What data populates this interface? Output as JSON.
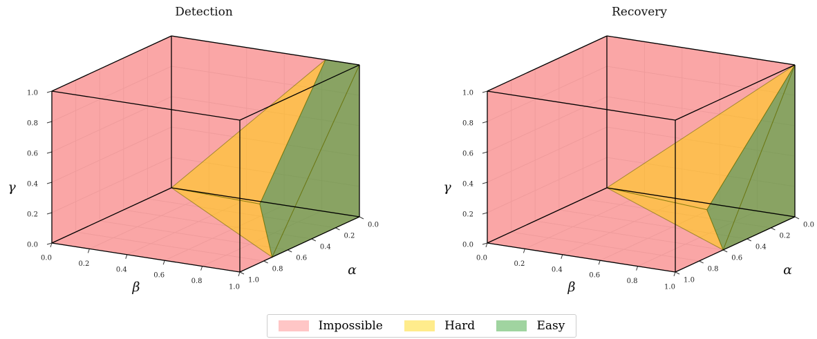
{
  "chart_data": [
    {
      "type": "polyhedron3d",
      "title": "Detection",
      "xlabel": "α",
      "ylabel": "β",
      "zlabel": "γ",
      "xlim": [
        0,
        1
      ],
      "ylim": [
        0,
        1
      ],
      "zlim": [
        0,
        1
      ],
      "xticks": [
        {
          "value": 0,
          "label": "0.0"
        },
        0.2,
        0.4,
        0.6,
        0.8,
        {
          "value": 1,
          "label": "1.0"
        }
      ],
      "yticks": [
        {
          "value": 0,
          "label": "0.0"
        },
        0.2,
        0.4,
        0.6,
        0.8,
        {
          "value": 1,
          "label": "1.0"
        }
      ],
      "zticks": [
        {
          "value": 0,
          "label": "0.0"
        },
        0.2,
        0.4,
        0.6,
        0.8,
        {
          "value": 1,
          "label": "1.0"
        }
      ],
      "regions": [
        {
          "faces": [
            [
              [
                0,
                0,
                0
              ],
              [
                1,
                0,
                0
              ],
              [
                1,
                1,
                0
              ],
              [
                0,
                1,
                0
              ]
            ],
            [
              [
                0,
                0,
                0
              ],
              [
                1,
                0,
                0
              ],
              [
                1,
                0,
                1
              ],
              [
                0,
                0,
                1
              ]
            ],
            [
              [
                0,
                0,
                0
              ],
              [
                0,
                1,
                0
              ],
              [
                0,
                1,
                1
              ],
              [
                0,
                0,
                1
              ]
            ],
            [
              [
                1,
                0,
                0
              ],
              [
                1,
                1,
                0
              ],
              [
                1,
                1,
                1
              ],
              [
                1,
                0,
                1
              ]
            ],
            [
              [
                0,
                1,
                0
              ],
              [
                1,
                1,
                0
              ],
              [
                1,
                1,
                1
              ],
              [
                0,
                1,
                1
              ]
            ],
            [
              [
                0,
                0,
                1
              ],
              [
                1,
                0,
                1
              ],
              [
                1,
                1,
                1
              ],
              [
                0,
                1,
                1
              ]
            ]
          ]
        },
        {
          "faces": [
            [
              [
                0,
                0,
                0
              ],
              [
                0,
                0.82,
                1
              ],
              [
                0.55,
                0.82,
                0.25
              ]
            ],
            [
              [
                0,
                0,
                0
              ],
              [
                0.55,
                0.82,
                0.25
              ],
              [
                0.73,
                1,
                0
              ]
            ]
          ]
        },
        {
          "faces": [
            [
              [
                0,
                0.82,
                1
              ],
              [
                0,
                1,
                1
              ],
              [
                0.73,
                1,
                0
              ],
              [
                0.55,
                0.82,
                0.25
              ]
            ],
            [
              [
                0,
                1,
                1
              ],
              [
                0,
                1,
                0
              ],
              [
                0.73,
                1,
                0
              ]
            ]
          ]
        }
      ]
    },
    {
      "type": "polyhedron3d",
      "title": "Recovery",
      "xlabel": "α",
      "ylabel": "β",
      "zlabel": "γ",
      "xlim": [
        0,
        1
      ],
      "ylim": [
        0,
        1
      ],
      "zlim": [
        0,
        1
      ],
      "xticks": [
        {
          "value": 0,
          "label": "0.0"
        },
        0.2,
        0.4,
        0.6,
        0.8,
        {
          "value": 1,
          "label": "1.0"
        }
      ],
      "yticks": [
        {
          "value": 0,
          "label": "0.0"
        },
        0.2,
        0.4,
        0.6,
        0.8,
        {
          "value": 1,
          "label": "1.0"
        }
      ],
      "zticks": [
        {
          "value": 0,
          "label": "0.0"
        },
        0.2,
        0.4,
        0.6,
        0.8,
        {
          "value": 1,
          "label": "1.0"
        }
      ],
      "regions": [
        {
          "faces": [
            [
              [
                0,
                0,
                0
              ],
              [
                1,
                0,
                0
              ],
              [
                1,
                1,
                0
              ],
              [
                0,
                1,
                0
              ]
            ],
            [
              [
                0,
                0,
                0
              ],
              [
                1,
                0,
                0
              ],
              [
                1,
                0,
                1
              ],
              [
                0,
                0,
                1
              ]
            ],
            [
              [
                0,
                0,
                0
              ],
              [
                0,
                1,
                0
              ],
              [
                0,
                1,
                1
              ],
              [
                0,
                0,
                1
              ]
            ],
            [
              [
                1,
                0,
                0
              ],
              [
                1,
                1,
                0
              ],
              [
                1,
                1,
                1
              ],
              [
                1,
                0,
                1
              ]
            ],
            [
              [
                0,
                1,
                0
              ],
              [
                1,
                1,
                0
              ],
              [
                1,
                1,
                1
              ],
              [
                0,
                1,
                1
              ]
            ],
            [
              [
                0,
                0,
                1
              ],
              [
                1,
                0,
                1
              ],
              [
                1,
                1,
                1
              ],
              [
                0,
                1,
                1
              ]
            ]
          ]
        },
        {
          "faces": [
            [
              [
                0,
                0,
                0
              ],
              [
                0,
                1,
                1
              ],
              [
                0.5,
                0.85,
                0.2
              ]
            ],
            [
              [
                0,
                0,
                0
              ],
              [
                0.5,
                0.85,
                0.2
              ],
              [
                0.6,
                1,
                0
              ]
            ]
          ]
        },
        {
          "faces": [
            [
              [
                0,
                1,
                1
              ],
              [
                0.5,
                0.85,
                0.2
              ],
              [
                0.6,
                1,
                0
              ]
            ],
            [
              [
                0,
                1,
                1
              ],
              [
                0,
                1,
                0
              ],
              [
                0.6,
                1,
                0
              ]
            ]
          ]
        }
      ]
    }
  ],
  "legend": {
    "entries": [
      {
        "name": "Impossible",
        "color": "#ff8080"
      },
      {
        "name": "Hard",
        "color": "#ffd400"
      },
      {
        "name": "Easy",
        "color": "#2ca02c"
      }
    ]
  }
}
